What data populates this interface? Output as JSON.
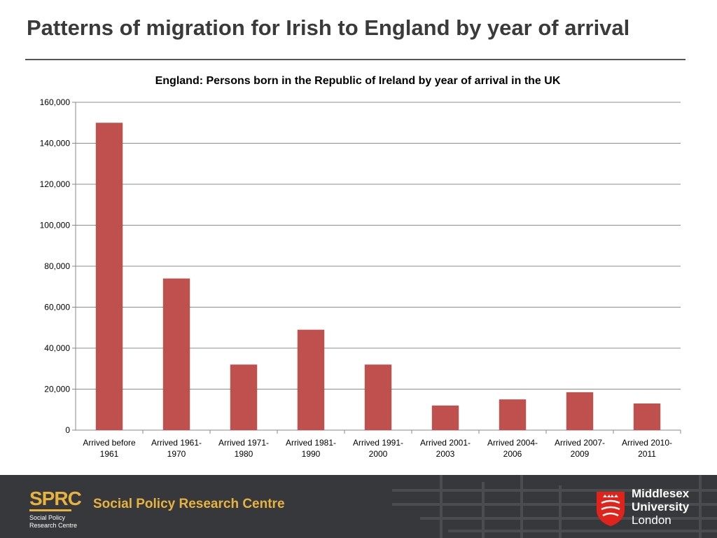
{
  "slide": {
    "title": "Patterns of migration for Irish to England by year of arrival"
  },
  "chart_data": {
    "type": "bar",
    "title": "England: Persons born in the Republic of Ireland by year of arrival in the UK",
    "xlabel": "",
    "ylabel": "",
    "categories": [
      [
        "Arrived before",
        "1961"
      ],
      [
        "Arrived 1961-",
        "1970"
      ],
      [
        "Arrived 1971-",
        "1980"
      ],
      [
        "Arrived 1981-",
        "1990"
      ],
      [
        "Arrived 1991-",
        "2000"
      ],
      [
        "Arrived 2001-",
        "2003"
      ],
      [
        "Arrived 2004-",
        "2006"
      ],
      [
        "Arrived 2007-",
        "2009"
      ],
      [
        "Arrived 2010-",
        "2011"
      ]
    ],
    "values": [
      150000,
      74000,
      32000,
      49000,
      32000,
      12000,
      15000,
      18500,
      13000
    ],
    "ylim": [
      0,
      160000
    ],
    "yticks": [
      "0",
      "20,000",
      "40,000",
      "60,000",
      "80,000",
      "100,000",
      "120,000",
      "140,000",
      "160,000"
    ],
    "grid": true,
    "legend": "none",
    "bar_color": "#c0504d"
  },
  "footer": {
    "sprc_logo": "SPRC",
    "sprc_subtitle_line1": "Social Policy",
    "sprc_subtitle_line2": "Research Centre",
    "sprc_name": "Social Policy Research Centre",
    "university_line1": "Middlesex",
    "university_line2": "University",
    "university_line3": "London",
    "logo_color": "#e7b33e",
    "shield_color": "#e0241b"
  }
}
